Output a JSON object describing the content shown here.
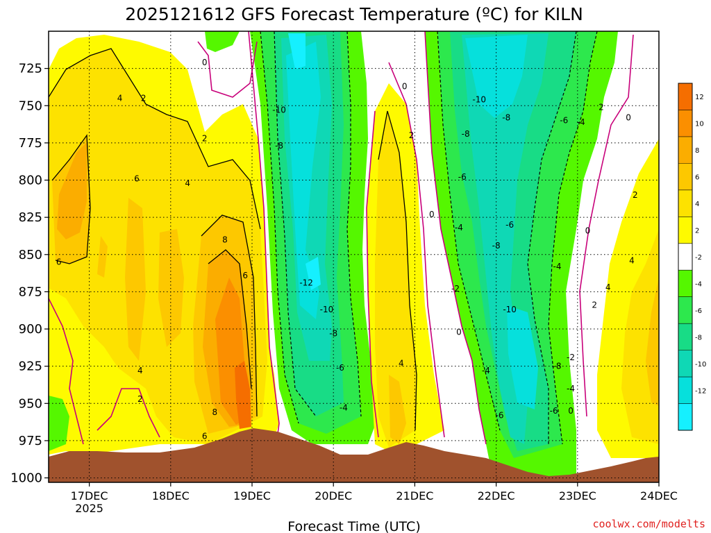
{
  "title": "2025121612 GFS Forecast Temperature (ºC) for KILN",
  "credit": "coolwx.com/modelts",
  "chart_data": {
    "type": "contour",
    "xlabel": "Forecast Time (UTC)",
    "ylabel": "",
    "x_ticks": [
      {
        "label": "17DEC",
        "sub": "2025",
        "hour": 12
      },
      {
        "label": "18DEC",
        "sub": "",
        "hour": 36
      },
      {
        "label": "19DEC",
        "sub": "",
        "hour": 60
      },
      {
        "label": "20DEC",
        "sub": "",
        "hour": 84
      },
      {
        "label": "21DEC",
        "sub": "",
        "hour": 108
      },
      {
        "label": "22DEC",
        "sub": "",
        "hour": 132
      },
      {
        "label": "23DEC",
        "sub": "",
        "hour": 156
      },
      {
        "label": "24DEC",
        "sub": "",
        "hour": 180
      }
    ],
    "xlim_hours": [
      0,
      180
    ],
    "y_ticks": [
      725,
      750,
      775,
      800,
      825,
      850,
      875,
      900,
      925,
      950,
      975,
      1000
    ],
    "ylim_hpa": [
      700,
      1003
    ],
    "grid": true,
    "colorbar": {
      "labels": [
        "12",
        "10",
        "8",
        "6",
        "4",
        "2",
        "-2",
        "-4",
        "-6",
        "-8",
        "-10",
        "-12"
      ],
      "colors": [
        "#f56e00",
        "#fb8f00",
        "#fbad00",
        "#fdc800",
        "#fde200",
        "#fefa00",
        "#ffffff",
        "#55f700",
        "#2de84d",
        "#18dc86",
        "#0fd8b5",
        "#06e0dc",
        "#15f0ff"
      ]
    },
    "contour_levels": [
      -12,
      -10,
      -8,
      -6,
      -4,
      -2,
      0,
      2,
      4,
      6,
      8,
      10,
      12
    ],
    "contour_labels": [
      {
        "text": "0",
        "hour": 46,
        "hpa": 721
      },
      {
        "text": "4",
        "hour": 21,
        "hpa": 745
      },
      {
        "text": "2",
        "hour": 28,
        "hpa": 745
      },
      {
        "text": "2",
        "hour": 46,
        "hpa": 772
      },
      {
        "text": "4",
        "hour": 41,
        "hpa": 802
      },
      {
        "text": "6",
        "hour": 26,
        "hpa": 799
      },
      {
        "text": "6",
        "hour": 3,
        "hpa": 855
      },
      {
        "text": "8",
        "hour": 52,
        "hpa": 840
      },
      {
        "text": "6",
        "hour": 58,
        "hpa": 864
      },
      {
        "text": "4",
        "hour": 27,
        "hpa": 928
      },
      {
        "text": "2",
        "hour": 27,
        "hpa": 947
      },
      {
        "text": "6",
        "hour": 46,
        "hpa": 972
      },
      {
        "text": "8",
        "hour": 49,
        "hpa": 956
      },
      {
        "text": "-10",
        "hour": 68,
        "hpa": 753
      },
      {
        "text": "-8",
        "hour": 68,
        "hpa": 777
      },
      {
        "text": "-12",
        "hour": 76,
        "hpa": 869
      },
      {
        "text": "-10",
        "hour": 82,
        "hpa": 887
      },
      {
        "text": "-8",
        "hour": 84,
        "hpa": 903
      },
      {
        "text": "-6",
        "hour": 86,
        "hpa": 926
      },
      {
        "text": "-4",
        "hour": 87,
        "hpa": 953
      },
      {
        "text": "0",
        "hour": 105,
        "hpa": 737
      },
      {
        "text": "2",
        "hour": 107,
        "hpa": 770
      },
      {
        "text": "4",
        "hour": 104,
        "hpa": 923
      },
      {
        "text": "0",
        "hour": 113,
        "hpa": 823
      },
      {
        "text": "-10",
        "hour": 127,
        "hpa": 746
      },
      {
        "text": "-8",
        "hour": 135,
        "hpa": 758
      },
      {
        "text": "-8",
        "hour": 123,
        "hpa": 769
      },
      {
        "text": "-6",
        "hour": 122,
        "hpa": 798
      },
      {
        "text": "-4",
        "hour": 121,
        "hpa": 832
      },
      {
        "text": "-6",
        "hour": 136,
        "hpa": 830
      },
      {
        "text": "-8",
        "hour": 132,
        "hpa": 844
      },
      {
        "text": "-2",
        "hour": 120,
        "hpa": 873
      },
      {
        "text": "0",
        "hour": 121,
        "hpa": 902
      },
      {
        "text": "-4",
        "hour": 129,
        "hpa": 928
      },
      {
        "text": "-10",
        "hour": 136,
        "hpa": 887
      },
      {
        "text": "-6",
        "hour": 133,
        "hpa": 958
      },
      {
        "text": "-8",
        "hour": 150,
        "hpa": 925
      },
      {
        "text": "-6",
        "hour": 149,
        "hpa": 955
      },
      {
        "text": "-4",
        "hour": 150,
        "hpa": 858
      },
      {
        "text": "-2",
        "hour": 154,
        "hpa": 919
      },
      {
        "text": "-4",
        "hour": 154,
        "hpa": 940
      },
      {
        "text": "0",
        "hour": 154,
        "hpa": 955
      },
      {
        "text": "-6",
        "hour": 152,
        "hpa": 760
      },
      {
        "text": "-4",
        "hour": 157,
        "hpa": 761
      },
      {
        "text": "2",
        "hour": 163,
        "hpa": 751
      },
      {
        "text": "0",
        "hour": 171,
        "hpa": 758
      },
      {
        "text": "0",
        "hour": 159,
        "hpa": 834
      },
      {
        "text": "2",
        "hour": 173,
        "hpa": 810
      },
      {
        "text": "4",
        "hour": 172,
        "hpa": 854
      },
      {
        "text": "4",
        "hour": 165,
        "hpa": 872
      },
      {
        "text": "2",
        "hour": 161,
        "hpa": 884
      }
    ],
    "terrain_note": "surface"
  }
}
